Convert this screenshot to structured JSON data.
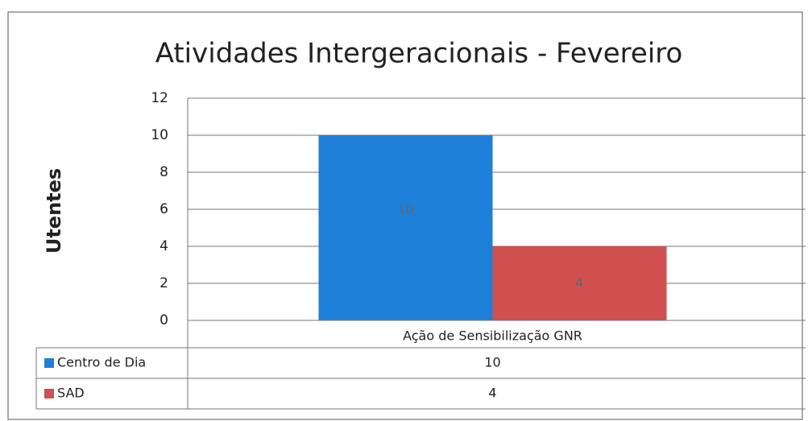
{
  "chart_data": {
    "type": "bar",
    "title": "Atividades Intergeracionais - Fevereiro",
    "y_label": "Utentes",
    "categories": [
      "Ação de Sensibilização GNR"
    ],
    "series": [
      {
        "name": "Centro de Dia",
        "color": "#1e7fd8",
        "values": [
          10
        ]
      },
      {
        "name": "SAD",
        "color": "#d04f4f",
        "values": [
          4
        ]
      }
    ],
    "ylim": [
      0,
      12
    ],
    "yticks": [
      0,
      2,
      4,
      6,
      8,
      10,
      12
    ],
    "grid": true,
    "data_table": true
  }
}
